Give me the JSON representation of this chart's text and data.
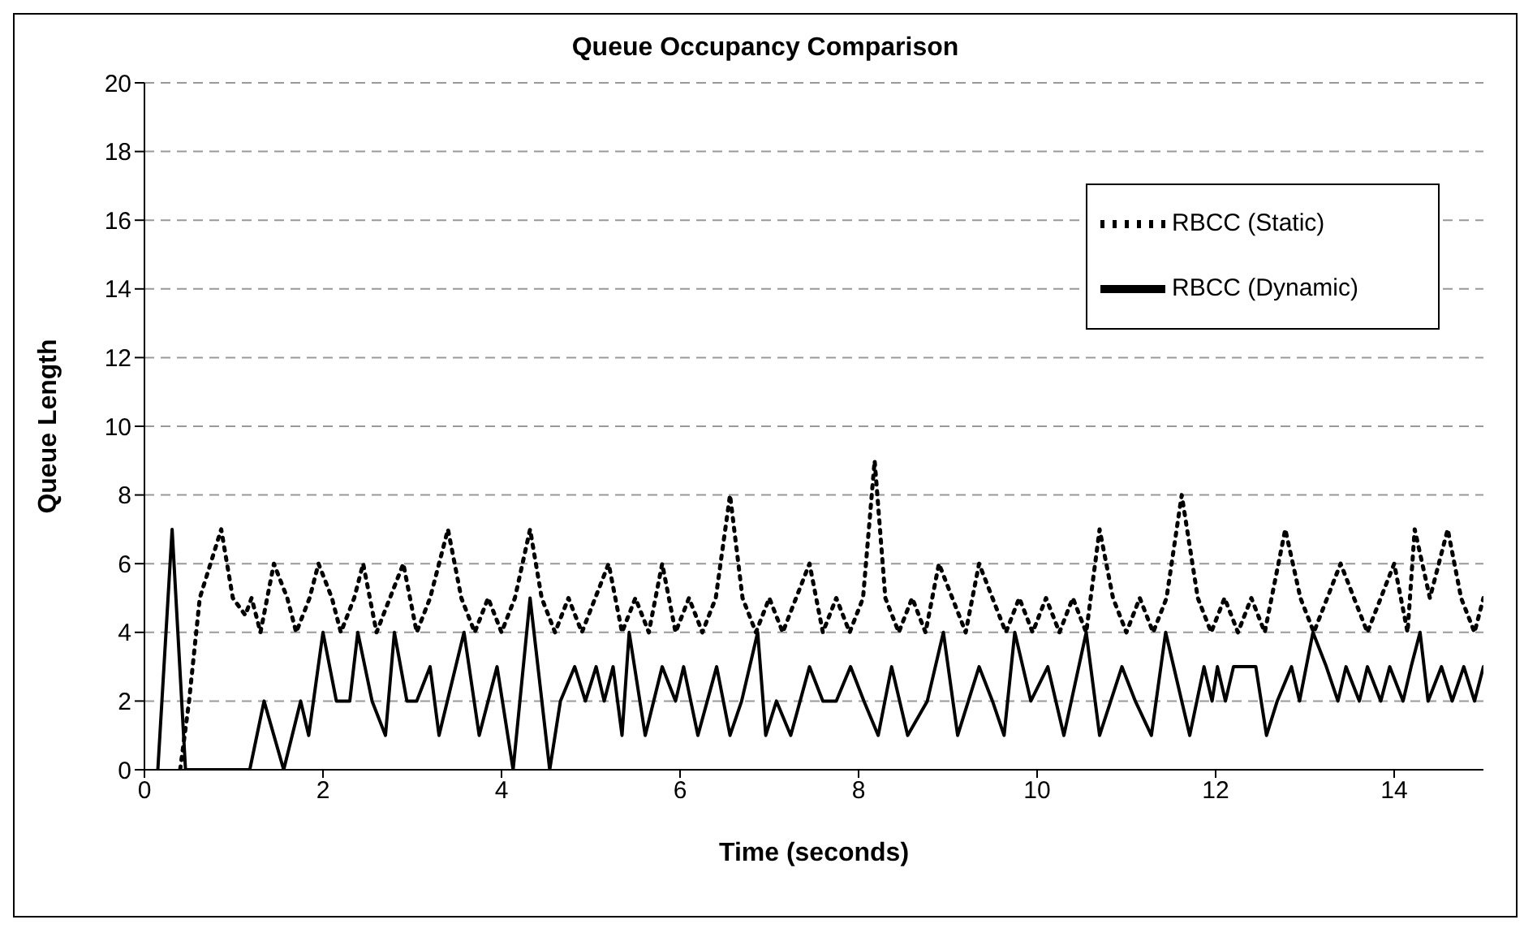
{
  "chart_data": {
    "type": "line",
    "title": "Queue Occupancy Comparison",
    "xlabel": "Time (seconds)",
    "ylabel": "Queue Length",
    "xlim": [
      0,
      15
    ],
    "xticks": [
      0,
      2,
      4,
      6,
      8,
      10,
      12,
      14
    ],
    "ylim": [
      0,
      20
    ],
    "yticks": [
      0,
      2,
      4,
      6,
      8,
      10,
      12,
      14,
      16,
      18,
      20
    ],
    "grid": "y",
    "legend": "top right",
    "marker": "none",
    "series": [
      {
        "name": "RBCC (Static)",
        "color": "#000000",
        "line_style": "dotted",
        "x": [
          0.4,
          0.5,
          0.62,
          0.86,
          0.99,
          1.13,
          1.2,
          1.3,
          1.45,
          1.6,
          1.7,
          1.85,
          1.95,
          2.1,
          2.2,
          2.35,
          2.45,
          2.6,
          2.75,
          2.9,
          3.05,
          3.2,
          3.4,
          3.55,
          3.7,
          3.85,
          4.0,
          4.15,
          4.32,
          4.45,
          4.6,
          4.75,
          4.9,
          5.05,
          5.2,
          5.35,
          5.5,
          5.65,
          5.8,
          5.95,
          6.1,
          6.25,
          6.4,
          6.56,
          6.7,
          6.85,
          7.0,
          7.15,
          7.3,
          7.45,
          7.6,
          7.75,
          7.9,
          8.05,
          8.18,
          8.3,
          8.45,
          8.6,
          8.75,
          8.9,
          9.05,
          9.2,
          9.35,
          9.5,
          9.65,
          9.8,
          9.95,
          10.1,
          10.25,
          10.4,
          10.55,
          10.7,
          10.85,
          11.0,
          11.15,
          11.3,
          11.45,
          11.62,
          11.8,
          11.95,
          12.1,
          12.25,
          12.4,
          12.55,
          12.78,
          12.95,
          13.1,
          13.25,
          13.4,
          13.55,
          13.7,
          13.85,
          14.0,
          14.15,
          14.23,
          14.4,
          14.6,
          14.75,
          14.9,
          15
        ],
        "values": [
          0,
          2,
          5,
          7,
          5,
          4.5,
          5,
          4,
          6,
          5,
          4,
          5,
          6,
          5,
          4,
          5,
          6,
          4,
          5,
          6,
          4,
          5,
          7,
          5,
          4,
          5,
          4,
          5,
          7,
          5,
          4,
          5,
          4,
          5,
          6,
          4,
          5,
          4,
          6,
          4,
          5,
          4,
          5,
          8,
          5,
          4,
          5,
          4,
          5,
          6,
          4,
          5,
          4,
          5,
          9,
          5,
          4,
          5,
          4,
          6,
          5,
          4,
          6,
          5,
          4,
          5,
          4,
          5,
          4,
          5,
          4,
          7,
          5,
          4,
          5,
          4,
          5,
          8,
          5,
          4,
          5,
          4,
          5,
          4,
          7,
          5,
          4,
          5,
          6,
          5,
          4,
          5,
          6,
          4,
          7,
          5,
          7,
          5,
          4,
          5
        ]
      },
      {
        "name": "RBCC (Dynamic)",
        "color": "#000000",
        "line_style": "solid",
        "x": [
          0.15,
          0.31,
          0.46,
          1.18,
          1.34,
          1.56,
          1.75,
          1.84,
          2.0,
          2.15,
          2.3,
          2.39,
          2.55,
          2.7,
          2.8,
          2.94,
          3.05,
          3.2,
          3.3,
          3.58,
          3.75,
          3.95,
          4.13,
          4.32,
          4.54,
          4.66,
          4.82,
          4.94,
          5.06,
          5.15,
          5.25,
          5.35,
          5.43,
          5.61,
          5.8,
          5.95,
          6.04,
          6.2,
          6.41,
          6.56,
          6.69,
          6.87,
          6.96,
          7.08,
          7.24,
          7.45,
          7.6,
          7.75,
          7.91,
          8.06,
          8.22,
          8.37,
          8.55,
          8.77,
          8.95,
          9.11,
          9.35,
          9.5,
          9.63,
          9.75,
          9.93,
          10.12,
          10.3,
          10.55,
          10.7,
          10.95,
          11.1,
          11.28,
          11.44,
          11.71,
          11.87,
          11.96,
          12.02,
          12.11,
          12.2,
          12.45,
          12.57,
          12.69,
          12.85,
          12.94,
          13.09,
          13.24,
          13.37,
          13.46,
          13.61,
          13.7,
          13.85,
          13.95,
          14.1,
          14.19,
          14.29,
          14.38,
          14.53,
          14.65,
          14.78,
          14.9,
          15
        ],
        "values": [
          0,
          7,
          0,
          0,
          2,
          0,
          2,
          1,
          4,
          2,
          2,
          4,
          2,
          1,
          4,
          2,
          2,
          3,
          1,
          4,
          1,
          3,
          0,
          5,
          0,
          2,
          3,
          2,
          3,
          2,
          3,
          1,
          4,
          1,
          3,
          2,
          3,
          1,
          3,
          1,
          2,
          4,
          1,
          2,
          1,
          3,
          2,
          2,
          3,
          2,
          1,
          3,
          1,
          2,
          4,
          1,
          3,
          2,
          1,
          4,
          2,
          3,
          1,
          4,
          1,
          3,
          2,
          1,
          4,
          1,
          3,
          2,
          3,
          2,
          3,
          3,
          1,
          2,
          3,
          2,
          4,
          3,
          2,
          3,
          2,
          3,
          2,
          3,
          2,
          3,
          4,
          2,
          3,
          2,
          3,
          2,
          3
        ]
      }
    ]
  }
}
